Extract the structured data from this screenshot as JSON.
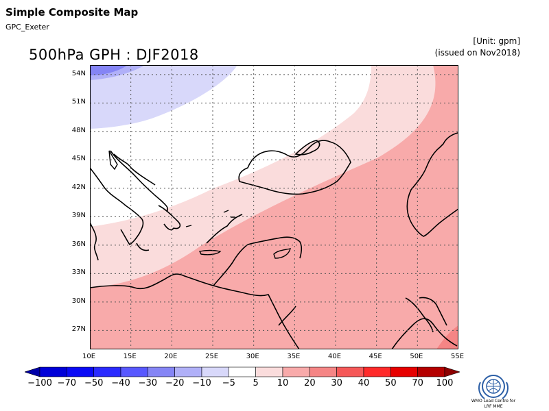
{
  "header": {
    "app_title": "Simple Composite Map",
    "subtitle": "GPC_Exeter",
    "map_title": "500hPa GPH : DJF2018",
    "unit": "[Unit: gpm]",
    "issued": "(issued on Nov2018)"
  },
  "map": {
    "lon_ticks": [
      "10E",
      "15E",
      "20E",
      "25E",
      "30E",
      "35E",
      "40E",
      "45E",
      "50E",
      "55E"
    ],
    "lat_ticks": [
      "54N",
      "51N",
      "48N",
      "45N",
      "42N",
      "39N",
      "36N",
      "33N",
      "30N",
      "27N"
    ],
    "lon_range": [
      10,
      55
    ],
    "lat_range": [
      25,
      55
    ],
    "grid": "dotted"
  },
  "colorbar": {
    "labels": [
      "-100",
      "-70",
      "-50",
      "-40",
      "-30",
      "-20",
      "-10",
      "-5",
      "5",
      "10",
      "20",
      "30",
      "40",
      "50",
      "70",
      "100"
    ],
    "colors": [
      "#0000a8",
      "#0000d8",
      "#0a0af5",
      "#2a2aff",
      "#5858ff",
      "#8585f5",
      "#b0b0f8",
      "#d8d8fa",
      "#ffffff",
      "#fadcdc",
      "#f8aaaa",
      "#f58585",
      "#f55858",
      "#ff2a2a",
      "#e60000",
      "#b40000",
      "#8c0000"
    ]
  },
  "logo": {
    "line1": "WMO Lead Centre for",
    "line2": "LRF MME"
  }
}
